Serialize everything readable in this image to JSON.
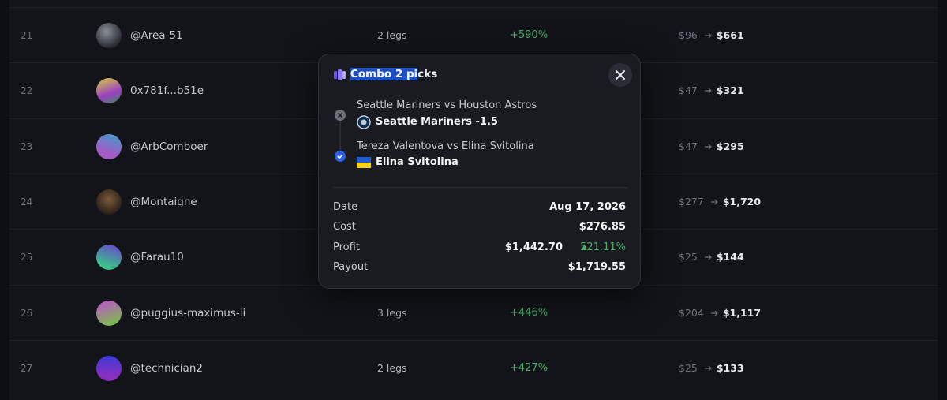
{
  "leaderboard": {
    "rows": [
      {
        "rank": "21",
        "user": "@Area-51",
        "legs": "2 legs",
        "return": "+590%",
        "cost": "$96",
        "payout": "$661"
      },
      {
        "rank": "22",
        "user": "0x781f...b51e",
        "cost": "$47",
        "payout": "$321"
      },
      {
        "rank": "23",
        "user": "@ArbComboer",
        "cost": "$47",
        "payout": "$295"
      },
      {
        "rank": "24",
        "user": "@Montaigne",
        "cost": "$277",
        "payout": "$1,720"
      },
      {
        "rank": "25",
        "user": "@Farau10",
        "cost": "$25",
        "payout": "$144"
      },
      {
        "rank": "26",
        "user": "@puggius-maximus-ii",
        "legs": "3 legs",
        "return": "+446%",
        "cost": "$204",
        "payout": "$1,117"
      },
      {
        "rank": "27",
        "user": "@technician2",
        "legs": "2 legs",
        "return": "+427%",
        "cost": "$25",
        "payout": "$133"
      }
    ]
  },
  "modal": {
    "title": "Combo 2 picks",
    "legs": [
      {
        "match": "Seattle Mariners vs Houston Astros",
        "pick": "Seattle Mariners -1.5"
      },
      {
        "match": "Tereza Valentova vs Elina Svitolina",
        "pick": "Elina Svitolina"
      }
    ],
    "details": {
      "date_label": "Date",
      "date": "Aug 17, 2026",
      "cost_label": "Cost",
      "cost": "$276.85",
      "profit_label": "Profit",
      "profit": "$1,442.70",
      "profit_pct": "521.11%",
      "payout_label": "Payout",
      "payout": "$1,719.55"
    }
  }
}
